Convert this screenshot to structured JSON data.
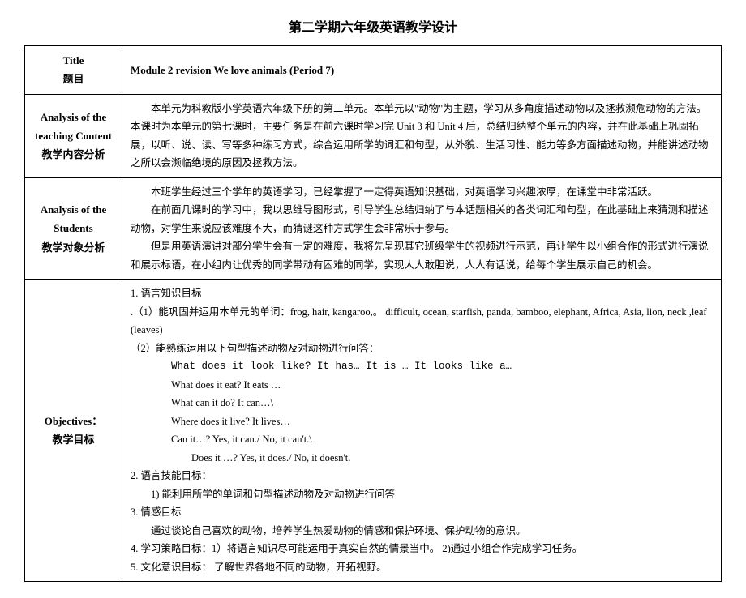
{
  "doc_title": "第二学期六年级英语教学设计",
  "rows": {
    "title": {
      "label_en": "Title",
      "label_zh": "题目",
      "content": "Module 2    revision    We love animals    (Period 7)"
    },
    "analysis_content": {
      "label_en": "Analysis of the teaching Content",
      "label_zh": "教学内容分析",
      "paragraphs": [
        "本单元为科教版小学英语六年级下册的第二单元。本单元以\"动物\"为主题，学习从多角度描述动物以及拯救濒危动物的方法。本课时为本单元的第七课时，主要任务是在前六课时学习完 Unit 3 和 Unit 4 后，总结归纳整个单元的内容，并在此基础上巩固拓展，以听、说、读、写等多种练习方式，综合运用所学的词汇和句型，从外貌、生活习性、能力等多方面描述动物，并能讲述动物之所以会濒临绝境的原因及拯救方法。"
      ]
    },
    "analysis_students": {
      "label_en": "Analysis of the Students",
      "label_zh": "教学对象分析",
      "paragraphs": [
        "本班学生经过三个学年的英语学习，已经掌握了一定得英语知识基础，对英语学习兴趣浓厚，在课堂中非常活跃。",
        "在前面几课时的学习中，我以思维导图形式，引导学生总结归纳了与本话题相关的各类词汇和句型，在此基础上来猜测和描述动物，对学生来说应该难度不大，而猜谜这种方式学生会非常乐于参与。",
        "但是用英语演讲对部分学生会有一定的难度，我将先呈现其它班级学生的视频进行示范，再让学生以小组合作的形式进行演说和展示标语，在小组内让优秀的同学带动有困难的同学，实现人人敢胆说，人人有话说，给每个学生展示自己的机会。"
      ]
    },
    "objectives": {
      "label_en": "Objectives：",
      "label_zh": "教学目标",
      "item1_header": "1.  语言知识目标",
      "item1_sub1": ".（1）能巩固并运用本单元的单词：frog, hair, kangaroo,。 difficult, ocean, starfish, panda, bamboo, elephant, Africa, Asia, lion, neck ,leaf (leaves)",
      "item1_sub2": "（2）能熟练运用以下句型描述动物及对动物进行问答：",
      "sentence1": "What does it look like?  It has… It is … It looks like a…",
      "sentence2": "What does it eat?      It eats …",
      "sentence3": "What can it do?      It can…\\",
      "sentence4": "Where does it live?   It lives…",
      "sentence5": "Can it…? Yes, it can./ No, it can't.\\",
      "sentence6": " Does it …? Yes, it does./ No, it doesn't.",
      "item2_header": "2.  语言技能目标：",
      "item2_sub1": "1)  能利用所学的单词和句型描述动物及对动物进行问答",
      "item3_header": "3.  情感目标",
      "item3_sub1": "通过谈论自己喜欢的动物，培养学生热爱动物的情感和保护环境、保护动物的意识。",
      "item4": "4.  学习策略目标：1）将语言知识尽可能运用于真实自然的情景当中。 2)通过小组合作完成学习任务。",
      "item5": "5.  文化意识目标：  了解世界各地不同的动物，开拓视野。"
    }
  }
}
